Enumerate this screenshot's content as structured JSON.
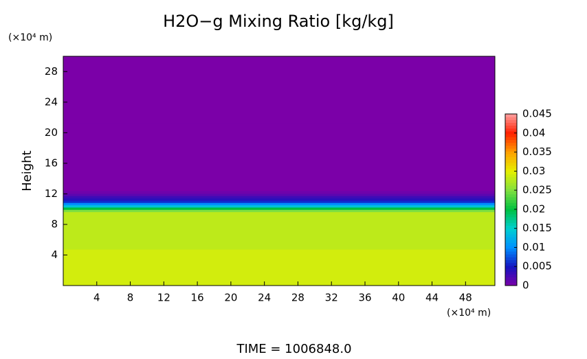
{
  "chart_data": {
    "type": "heatmap-profile",
    "title": "H2O−g Mixing Ratio [kg/kg]",
    "y_label": "Height",
    "y_unit": "(×10⁴ m)",
    "x_unit": "(×10⁴ m)",
    "footer": "TIME = 1006848.0",
    "xlim": [
      0,
      51.5
    ],
    "xticks": [
      4,
      8,
      12,
      16,
      20,
      24,
      28,
      32,
      36,
      40,
      44,
      48
    ],
    "ylim": [
      0,
      30
    ],
    "yticks": [
      4,
      8,
      12,
      16,
      20,
      24,
      28
    ],
    "heights": [
      0,
      9.5,
      9.8,
      10.1,
      10.4,
      10.7,
      11.0,
      11.3,
      11.6,
      11.9,
      12.2,
      12.6,
      30
    ],
    "values": [
      0.029,
      0.028,
      0.025,
      0.02,
      0.014,
      0.01,
      0.006,
      0.004,
      0.003,
      0.0015,
      0.0006,
      0,
      0
    ],
    "clim": [
      0,
      0.045
    ],
    "cticks": [
      0,
      0.005,
      0.01,
      0.015,
      0.02,
      0.025,
      0.03,
      0.035,
      0.04,
      0.045
    ],
    "colorscale": [
      "#7b00a8",
      "#1414c0",
      "#0090ff",
      "#00d0d0",
      "#00c040",
      "#80e040",
      "#e6f000",
      "#ffa000",
      "#ff2000",
      "#ffa0a0"
    ]
  }
}
